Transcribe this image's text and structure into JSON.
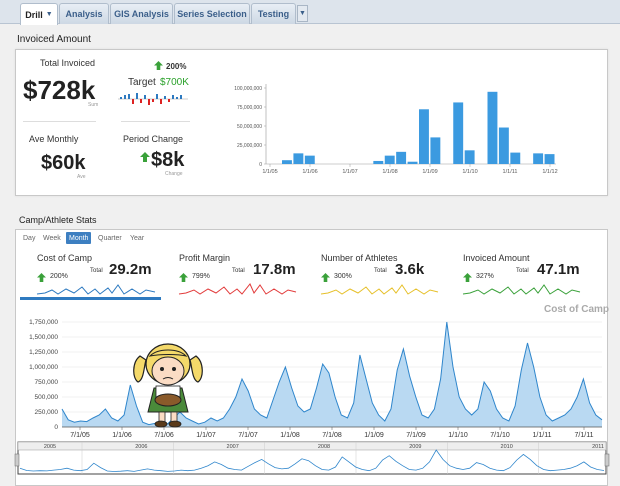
{
  "tabs": [
    {
      "label": "Drill",
      "active": true
    },
    {
      "label": "Analysis"
    },
    {
      "label": "GIS Analysis"
    },
    {
      "label": "Series Selection"
    },
    {
      "label": "Testing"
    }
  ],
  "invoiced_section_title": "Invoiced Amount",
  "kpis": {
    "total_invoiced": {
      "label": "Total Invoiced",
      "value": "$728k",
      "sub": "Sum"
    },
    "target": {
      "pct": "200%",
      "label": "Target",
      "value": "$700K"
    },
    "ave_monthly": {
      "label": "Ave Monthly",
      "value": "$60k",
      "sub": "Ave"
    },
    "period_change": {
      "label": "Period Change",
      "value": "$8k",
      "sub": "Change"
    }
  },
  "colors": {
    "accent": "#2e7ac0",
    "target_green": "#2aa12a",
    "up_green": "#3aa13a",
    "bar_blue": "#3b9ae0",
    "area_fill": "#b9d9f2",
    "area_line": "#2f86cc"
  },
  "chart_data": [
    {
      "type": "bar",
      "ylim": [
        0,
        100000000
      ],
      "y_ticks": [
        "0",
        "25,000,000",
        "50,000,000",
        "75,000,000",
        "100,000,000"
      ],
      "x_tick_labels": [
        "1/1/05",
        "1/1/06",
        "1/1/07",
        "1/1/08",
        "1/1/09",
        "1/1/10",
        "1/1/11",
        "1/1/12"
      ],
      "values": [
        5000000,
        14000000,
        11000000,
        0,
        0,
        0,
        0,
        0,
        4000000,
        11000000,
        16000000,
        3000000,
        72000000,
        35000000,
        0,
        81000000,
        18000000,
        0,
        95000000,
        48000000,
        15000000,
        0,
        14000000,
        13000000
      ]
    },
    {
      "type": "area",
      "title": "Cost of Camp",
      "ylim": [
        0,
        1750000
      ],
      "y_ticks": [
        "0",
        "250,000",
        "500,000",
        "750,000",
        "1,000,000",
        "1,250,000",
        "1,500,000",
        "1,750,000"
      ],
      "x_tick_labels": [
        "7/1/05",
        "1/1/06",
        "7/1/06",
        "1/1/07",
        "7/1/07",
        "1/1/08",
        "7/1/08",
        "1/1/09",
        "7/1/09",
        "1/1/10",
        "7/1/10",
        "1/1/11",
        "7/1/11"
      ],
      "navigator_years": [
        "2005",
        "2006",
        "2007",
        "2008",
        "2009",
        "2010",
        "2011"
      ],
      "values": [
        300000,
        120000,
        80000,
        100000,
        90000,
        150000,
        200000,
        300000,
        150000,
        100000,
        200000,
        700000,
        350000,
        80000,
        40000,
        60000,
        100000,
        50000,
        150000,
        250000,
        150000,
        100000,
        50000,
        80000,
        150000,
        100000,
        150000,
        300000,
        500000,
        800000,
        600000,
        300000,
        200000,
        150000,
        450000,
        750000,
        1000000,
        650000,
        350000,
        250000,
        300000,
        650000,
        1050000,
        900000,
        500000,
        200000,
        150000,
        400000,
        1200000,
        800000,
        400000,
        200000,
        100000,
        300000,
        950000,
        1300000,
        850000,
        500000,
        200000,
        150000,
        300000,
        800000,
        1800000,
        1000000,
        500000,
        300000,
        200000,
        300000,
        750000,
        600000,
        300000,
        150000,
        100000,
        350000,
        950000,
        1400000,
        1000000,
        500000,
        200000,
        100000,
        150000,
        200000,
        300000,
        500000,
        800000,
        400000,
        200000,
        120000
      ]
    }
  ],
  "camp_section_title": "Camp/Athlete Stats",
  "periods": [
    "Day",
    "Week",
    "Month",
    "Quarter",
    "Year"
  ],
  "active_period": "Month",
  "metrics": [
    {
      "name": "Cost of Camp",
      "pct": "200%",
      "total_label": "Total",
      "total": "29.2m",
      "color": "#2e7ac0"
    },
    {
      "name": "Profit Margin",
      "pct": "799%",
      "total_label": "Total",
      "total": "17.8m",
      "color": "#e23b3b"
    },
    {
      "name": "Number of Athletes",
      "pct": "300%",
      "total_label": "Total",
      "total": "3.6k",
      "color": "#e6c02a"
    },
    {
      "name": "Invoiced Amount",
      "pct": "327%",
      "total_label": "Total",
      "total": "47.1m",
      "color": "#3aa13a"
    }
  ]
}
